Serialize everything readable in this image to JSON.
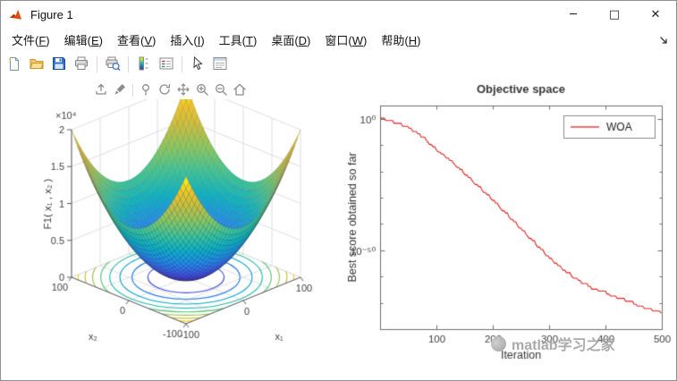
{
  "window": {
    "title": "Figure 1",
    "controls": {
      "minimize": "─",
      "maximize": "□",
      "close": "✕"
    }
  },
  "menubar": {
    "items": [
      {
        "text": "文件",
        "accel": "F"
      },
      {
        "text": "编辑",
        "accel": "E"
      },
      {
        "text": "查看",
        "accel": "V"
      },
      {
        "text": "插入",
        "accel": "I"
      },
      {
        "text": "工具",
        "accel": "T"
      },
      {
        "text": "桌面",
        "accel": "D"
      },
      {
        "text": "窗口",
        "accel": "W"
      },
      {
        "text": "帮助",
        "accel": "H"
      }
    ]
  },
  "toolbar": {
    "groups": [
      [
        "new-figure",
        "open-file",
        "save-figure",
        "print-figure"
      ],
      [
        "print-preview"
      ],
      [
        "insert-colorbar",
        "insert-legend"
      ],
      [
        "edit-plot",
        "property-inspector"
      ]
    ]
  },
  "axes_toolbar": {
    "groups": [
      [
        "export",
        "brush"
      ],
      [
        "datatips",
        "rotate",
        "pan",
        "zoom-in",
        "zoom-out",
        "home"
      ]
    ]
  },
  "watermark": {
    "text": "matlab学习之家"
  },
  "chart_data": [
    {
      "type": "surface",
      "zlabel": "F1( x₁ , x₂ )",
      "xlabel": "x₁",
      "ylabel": "x₂",
      "x_ticks": [
        "-100",
        "0",
        "100"
      ],
      "y_ticks": [
        "100",
        "0",
        "-100"
      ],
      "z_ticks": [
        "0",
        "0.5",
        "1",
        "1.5",
        "2"
      ],
      "z_multiplier": "×10⁴",
      "x_range": [
        -100,
        100
      ],
      "y_range": [
        -100,
        100
      ],
      "z_range": [
        0,
        20000
      ],
      "surface_formula": "z = x₁² + x₂²",
      "colormap": "parula",
      "contour_projection": true,
      "contour_levels": 8,
      "mesh_divisions": 40
    },
    {
      "type": "line",
      "title": "Objective space",
      "xlabel": "Iteration",
      "ylabel": "Best score obtained so far",
      "y_scale": "log",
      "x_ticks": [
        100,
        200,
        300,
        400,
        500
      ],
      "y_tick_labels": [
        "10⁰",
        "10⁻⁵⁰"
      ],
      "y_tick_exponents": [
        0,
        -50
      ],
      "xlim": [
        0,
        500
      ],
      "ylim_exponents": [
        5,
        -80
      ],
      "legend": {
        "entries": [
          {
            "label": "WOA",
            "color": "#e02222"
          }
        ],
        "position": "northeast"
      },
      "series": [
        {
          "name": "WOA",
          "color": "#e02222",
          "x": [
            1,
            25,
            50,
            75,
            100,
            125,
            150,
            175,
            200,
            225,
            250,
            275,
            300,
            325,
            350,
            375,
            400,
            425,
            450,
            475,
            500
          ],
          "log10_y": [
            0.2,
            -1.5,
            -3.5,
            -7,
            -12,
            -16,
            -21,
            -26,
            -31,
            -36.5,
            -42,
            -47.5,
            -53,
            -57.5,
            -61.5,
            -64.5,
            -66.5,
            -68.5,
            -70.5,
            -72.5,
            -74
          ]
        }
      ]
    }
  ]
}
